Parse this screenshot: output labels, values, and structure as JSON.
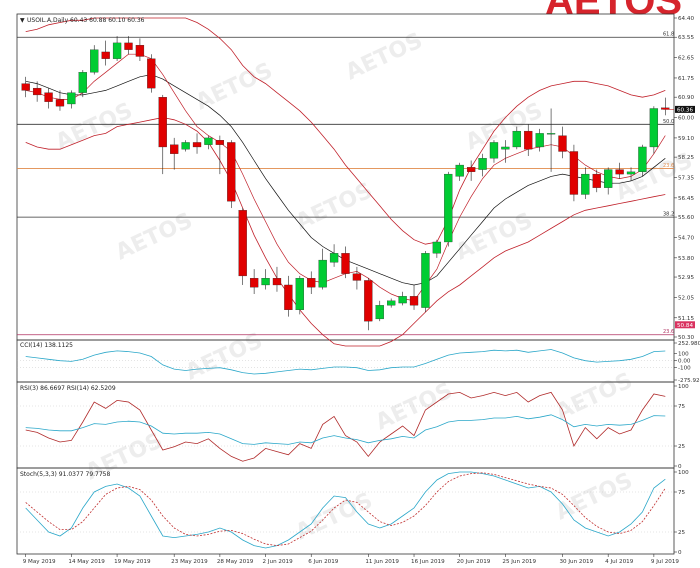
{
  "brand": {
    "logo_text": "AETOS",
    "watermark": "AETOS"
  },
  "chart_data": [
    {
      "panel": "price",
      "type": "candlestick",
      "symbol_title": "USOIL.A,Daily  60.43 60.88 60.10 60.36",
      "y_axis_labels": [
        "64.40",
        "63.55",
        "62.65",
        "61.75",
        "60.90",
        "60.00",
        "59.10",
        "58.25",
        "57.35",
        "56.45",
        "55.60",
        "54.70",
        "53.80",
        "52.95",
        "52.05",
        "51.15",
        "50.30"
      ],
      "ylim": [
        50.3,
        64.4
      ],
      "last_price": "60.36",
      "last_price_value": 60.36,
      "x_labels": [
        "9 May 2019",
        "14 May 2019",
        "19 May 2019",
        "23 May 2019",
        "28 May 2019",
        "2 Jun 2019",
        "6 Jun 2019",
        "11 Jun 2019",
        "16 Jun 2019",
        "20 Jun 2019",
        "25 Jun 2019",
        "30 Jun 2019",
        "4 Jul 2019",
        "9 Jul 2019"
      ],
      "fibonacci_levels": [
        {
          "label": "61.8",
          "value": 63.55,
          "color": "#333333"
        },
        {
          "label": "50.0",
          "value": 59.7,
          "color": "#333333"
        },
        {
          "label": "23.6",
          "value": 57.75,
          "color": "#e08a4a"
        },
        {
          "label": "38.2",
          "value": 55.6,
          "color": "#333333"
        },
        {
          "label": "23.6",
          "value": 50.4,
          "color": "#b03060"
        }
      ],
      "bottom_price_tag": "50.84",
      "bottom_price_tag_value": 50.84,
      "colors": {
        "up": "#00cc33",
        "down": "#e00000",
        "bollinger": "#c0202a",
        "ma": "#111111"
      },
      "candles": [
        {
          "o": 61.5,
          "h": 61.8,
          "c": 61.2,
          "l": 60.9
        },
        {
          "o": 61.3,
          "h": 61.6,
          "c": 61.0,
          "l": 60.7
        },
        {
          "o": 61.1,
          "h": 61.3,
          "c": 60.7,
          "l": 60.4
        },
        {
          "o": 60.8,
          "h": 61.2,
          "c": 60.5,
          "l": 60.3
        },
        {
          "o": 60.6,
          "h": 61.2,
          "c": 61.1,
          "l": 60.4
        },
        {
          "o": 61.1,
          "h": 62.1,
          "c": 62.0,
          "l": 60.9
        },
        {
          "o": 62.0,
          "h": 63.2,
          "c": 63.0,
          "l": 61.9
        },
        {
          "o": 62.9,
          "h": 63.4,
          "c": 62.6,
          "l": 62.3
        },
        {
          "o": 62.6,
          "h": 63.6,
          "c": 63.3,
          "l": 62.5
        },
        {
          "o": 63.3,
          "h": 63.6,
          "c": 63.0,
          "l": 62.8
        },
        {
          "o": 63.2,
          "h": 63.5,
          "c": 62.7,
          "l": 62.5
        },
        {
          "o": 62.6,
          "h": 62.8,
          "c": 61.3,
          "l": 61.1
        },
        {
          "o": 60.9,
          "h": 61.0,
          "c": 58.7,
          "l": 57.5
        },
        {
          "o": 58.8,
          "h": 59.1,
          "c": 58.4,
          "l": 57.7
        },
        {
          "o": 58.6,
          "h": 59.0,
          "c": 58.9,
          "l": 58.5
        },
        {
          "o": 58.9,
          "h": 59.3,
          "c": 58.7,
          "l": 58.4
        },
        {
          "o": 58.8,
          "h": 59.2,
          "c": 59.1,
          "l": 58.6
        },
        {
          "o": 59.0,
          "h": 59.2,
          "c": 58.8,
          "l": 57.5
        },
        {
          "o": 58.9,
          "h": 59.0,
          "c": 56.3,
          "l": 56.0
        },
        {
          "o": 55.9,
          "h": 56.0,
          "c": 53.0,
          "l": 52.6
        },
        {
          "o": 52.9,
          "h": 53.3,
          "c": 52.5,
          "l": 52.2
        },
        {
          "o": 52.6,
          "h": 53.3,
          "c": 52.9,
          "l": 52.4
        },
        {
          "o": 52.9,
          "h": 53.4,
          "c": 52.6,
          "l": 52.3
        },
        {
          "o": 52.6,
          "h": 53.0,
          "c": 51.5,
          "l": 51.2
        },
        {
          "o": 51.5,
          "h": 53.0,
          "c": 52.9,
          "l": 51.3
        },
        {
          "o": 52.9,
          "h": 53.2,
          "c": 52.5,
          "l": 52.2
        },
        {
          "o": 52.5,
          "h": 54.2,
          "c": 53.7,
          "l": 52.4
        },
        {
          "o": 53.6,
          "h": 54.4,
          "c": 54.0,
          "l": 53.4
        },
        {
          "o": 54.0,
          "h": 54.3,
          "c": 53.1,
          "l": 52.9
        },
        {
          "o": 53.1,
          "h": 53.4,
          "c": 52.8,
          "l": 52.4
        },
        {
          "o": 52.8,
          "h": 52.9,
          "c": 51.0,
          "l": 50.6
        },
        {
          "o": 51.1,
          "h": 51.9,
          "c": 51.7,
          "l": 51.0
        },
        {
          "o": 51.7,
          "h": 52.0,
          "c": 51.9,
          "l": 51.6
        },
        {
          "o": 51.8,
          "h": 52.3,
          "c": 52.1,
          "l": 51.7
        },
        {
          "o": 52.1,
          "h": 52.6,
          "c": 51.7,
          "l": 51.5
        },
        {
          "o": 51.6,
          "h": 54.1,
          "c": 54.0,
          "l": 51.4
        },
        {
          "o": 54.0,
          "h": 54.6,
          "c": 54.5,
          "l": 53.8
        },
        {
          "o": 54.5,
          "h": 57.6,
          "c": 57.5,
          "l": 54.3
        },
        {
          "o": 57.4,
          "h": 58.0,
          "c": 57.9,
          "l": 57.2
        },
        {
          "o": 57.8,
          "h": 58.1,
          "c": 57.6,
          "l": 57.2
        },
        {
          "o": 57.7,
          "h": 58.4,
          "c": 58.2,
          "l": 57.4
        },
        {
          "o": 58.2,
          "h": 59.0,
          "c": 58.9,
          "l": 58.0
        },
        {
          "o": 58.6,
          "h": 59.0,
          "c": 58.7,
          "l": 58.0
        },
        {
          "o": 58.7,
          "h": 59.6,
          "c": 59.4,
          "l": 58.6
        },
        {
          "o": 59.4,
          "h": 59.7,
          "c": 58.6,
          "l": 58.3
        },
        {
          "o": 58.7,
          "h": 59.5,
          "c": 59.3,
          "l": 58.5
        },
        {
          "o": 59.3,
          "h": 60.4,
          "c": 59.3,
          "l": 57.6
        },
        {
          "o": 59.2,
          "h": 59.6,
          "c": 58.5,
          "l": 58.2
        },
        {
          "o": 58.5,
          "h": 58.8,
          "c": 56.6,
          "l": 56.3
        },
        {
          "o": 56.6,
          "h": 57.8,
          "c": 57.5,
          "l": 56.4
        },
        {
          "o": 57.5,
          "h": 57.7,
          "c": 56.9,
          "l": 56.7
        },
        {
          "o": 56.9,
          "h": 57.8,
          "c": 57.7,
          "l": 56.6
        },
        {
          "o": 57.7,
          "h": 58.0,
          "c": 57.5,
          "l": 57.3
        },
        {
          "o": 57.5,
          "h": 57.8,
          "c": 57.6,
          "l": 57.2
        },
        {
          "o": 57.6,
          "h": 58.8,
          "c": 58.7,
          "l": 57.4
        },
        {
          "o": 58.7,
          "h": 60.5,
          "c": 60.4,
          "l": 58.4
        },
        {
          "o": 60.43,
          "h": 60.88,
          "c": 60.36,
          "l": 60.1
        }
      ],
      "bollinger_upper": [
        63.8,
        63.9,
        64.1,
        64.2,
        64.3,
        64.3,
        64.4,
        64.4,
        64.4,
        64.4,
        64.4,
        64.4,
        64.4,
        64.4,
        64.4,
        64.2,
        63.9,
        63.5,
        63.0,
        62.3,
        61.8,
        61.5,
        61.1,
        60.7,
        60.3,
        59.8,
        59.2,
        58.6,
        57.9,
        57.3,
        56.7,
        56.1,
        55.5,
        55.0,
        54.6,
        54.4,
        54.5,
        55.5,
        56.8,
        57.8,
        58.6,
        59.4,
        60.0,
        60.5,
        60.9,
        61.2,
        61.4,
        61.5,
        61.6,
        61.6,
        61.5,
        61.4,
        61.2,
        61.0,
        60.9,
        61.0,
        61.2
      ],
      "bollinger_lower": [
        58.9,
        58.7,
        58.6,
        58.6,
        58.8,
        59.0,
        59.2,
        59.3,
        59.6,
        59.7,
        59.8,
        59.9,
        60.0,
        59.9,
        59.7,
        59.4,
        58.9,
        58.1,
        57.2,
        56.0,
        54.8,
        53.8,
        52.9,
        52.2,
        51.5,
        50.9,
        50.4,
        50.0,
        49.8,
        49.7,
        49.8,
        49.9,
        50.1,
        50.4,
        50.9,
        51.4,
        51.9,
        52.3,
        52.6,
        53.0,
        53.4,
        53.8,
        54.1,
        54.3,
        54.5,
        54.8,
        55.1,
        55.4,
        55.7,
        55.9,
        56.0,
        56.1,
        56.2,
        56.3,
        56.4,
        56.5,
        56.6
      ],
      "ma_fast": [
        61.2,
        61.1,
        60.9,
        60.8,
        60.8,
        61.1,
        61.6,
        62.0,
        62.4,
        62.8,
        62.8,
        62.6,
        61.9,
        61.1,
        60.3,
        59.6,
        59.2,
        58.9,
        58.5,
        57.5,
        56.4,
        55.4,
        54.4,
        53.6,
        53.1,
        52.8,
        52.7,
        52.9,
        53.1,
        53.2,
        52.9,
        52.5,
        52.2,
        52.0,
        51.9,
        52.6,
        53.3,
        54.5,
        55.6,
        56.5,
        57.3,
        57.9,
        58.2,
        58.4,
        58.6,
        58.7,
        58.8,
        58.7,
        58.3,
        57.9,
        57.6,
        57.4,
        57.3,
        57.4,
        57.7,
        58.4,
        59.2
      ],
      "ma_slow": [
        61.6,
        61.5,
        61.3,
        61.1,
        61.0,
        61.0,
        61.1,
        61.2,
        61.4,
        61.6,
        61.8,
        61.9,
        61.7,
        61.4,
        61.1,
        60.8,
        60.5,
        60.1,
        59.6,
        58.9,
        58.1,
        57.3,
        56.6,
        55.9,
        55.3,
        54.7,
        54.3,
        54.0,
        53.7,
        53.5,
        53.3,
        53.1,
        52.9,
        52.7,
        52.6,
        52.7,
        53.0,
        53.6,
        54.2,
        54.8,
        55.4,
        56.0,
        56.4,
        56.7,
        57.0,
        57.2,
        57.4,
        57.5,
        57.4,
        57.3,
        57.2,
        57.1,
        57.1,
        57.2,
        57.4,
        57.8,
        58.2
      ]
    },
    {
      "panel": "cci",
      "type": "line",
      "title": "CCI(14) 138.1125",
      "y_axis_labels": [
        "252.9807",
        "100",
        "0.00",
        "-100",
        "-275.924"
      ],
      "ylim": [
        -275.924,
        252.9807
      ],
      "color": "#2aa7c9",
      "values": [
        60,
        40,
        20,
        0,
        -10,
        20,
        80,
        120,
        140,
        130,
        110,
        60,
        -60,
        -120,
        -140,
        -120,
        -110,
        -100,
        -130,
        -170,
        -190,
        -180,
        -160,
        -140,
        -120,
        -130,
        -110,
        -90,
        -90,
        -100,
        -140,
        -130,
        -100,
        -90,
        -90,
        -40,
        20,
        80,
        110,
        120,
        130,
        150,
        140,
        150,
        120,
        140,
        160,
        110,
        40,
        0,
        -20,
        -10,
        0,
        20,
        60,
        130,
        138
      ]
    },
    {
      "panel": "rsi",
      "type": "line",
      "title": "RSI(3) 86.6697  RSI(14) 62.5209",
      "y_axis_labels": [
        "100",
        "75",
        "25",
        "0"
      ],
      "ylim": [
        0,
        100
      ],
      "series": [
        {
          "name": "RSI(3)",
          "color": "#b02a2a",
          "values": [
            45,
            42,
            35,
            30,
            32,
            55,
            80,
            72,
            82,
            80,
            70,
            45,
            20,
            24,
            30,
            28,
            34,
            22,
            12,
            6,
            10,
            22,
            18,
            14,
            28,
            22,
            52,
            62,
            38,
            30,
            12,
            30,
            40,
            50,
            38,
            70,
            80,
            90,
            92,
            85,
            88,
            92,
            88,
            92,
            80,
            88,
            92,
            70,
            25,
            48,
            34,
            48,
            40,
            45,
            70,
            90,
            87
          ]
        },
        {
          "name": "RSI(14)",
          "color": "#2aa7c9",
          "values": [
            48,
            47,
            45,
            44,
            44,
            48,
            53,
            52,
            55,
            56,
            55,
            50,
            41,
            40,
            41,
            41,
            42,
            40,
            34,
            28,
            27,
            29,
            28,
            27,
            30,
            29,
            35,
            38,
            35,
            33,
            29,
            32,
            34,
            37,
            35,
            45,
            49,
            55,
            57,
            57,
            58,
            60,
            60,
            62,
            59,
            61,
            64,
            58,
            49,
            52,
            50,
            52,
            51,
            52,
            57,
            63,
            62.5
          ]
        }
      ]
    },
    {
      "panel": "stoch",
      "type": "line",
      "title": "Stoch(5,3,3) 91.0377 79.7758",
      "y_axis_labels": [
        "100",
        "75",
        "25",
        "0"
      ],
      "ylim": [
        0,
        100
      ],
      "series": [
        {
          "name": "Stoch main",
          "color": "#2aa7c9",
          "values": [
            55,
            40,
            25,
            20,
            30,
            55,
            75,
            82,
            85,
            80,
            70,
            45,
            20,
            18,
            20,
            22,
            25,
            30,
            25,
            15,
            8,
            5,
            8,
            15,
            25,
            35,
            55,
            70,
            68,
            50,
            35,
            30,
            35,
            45,
            55,
            75,
            90,
            98,
            100,
            100,
            98,
            95,
            90,
            85,
            80,
            82,
            75,
            60,
            40,
            30,
            25,
            20,
            25,
            35,
            50,
            80,
            91
          ]
        },
        {
          "name": "Stoch signal",
          "color": "#c03030",
          "dash": true,
          "values": [
            62,
            50,
            38,
            28,
            28,
            38,
            55,
            72,
            80,
            82,
            78,
            65,
            45,
            30,
            22,
            20,
            22,
            26,
            27,
            23,
            16,
            10,
            8,
            10,
            18,
            26,
            40,
            55,
            65,
            62,
            50,
            38,
            33,
            37,
            45,
            58,
            75,
            88,
            95,
            98,
            99,
            97,
            93,
            89,
            85,
            82,
            80,
            72,
            58,
            43,
            32,
            25,
            23,
            27,
            38,
            58,
            79.8
          ]
        }
      ]
    }
  ]
}
